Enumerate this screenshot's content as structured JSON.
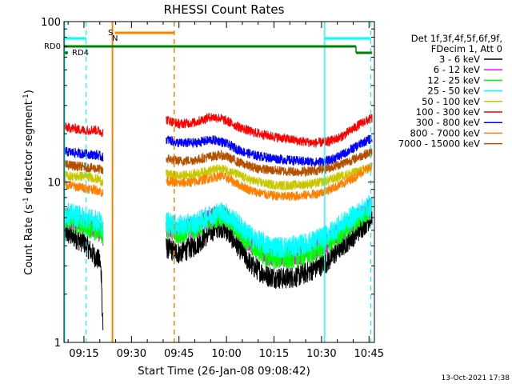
{
  "chart_data": {
    "type": "line",
    "title": "RHESSI Count Rates",
    "xlabel": "Start Time (26-Jan-08 09:08:42)",
    "ylabel_main": "Count Rate (s",
    "ylabel_sup1": "-1",
    "ylabel_mid": " detector segment",
    "ylabel_sup2": "-1",
    "ylabel_end": ")",
    "yscale": "log",
    "ylim": [
      1,
      100
    ],
    "xlim_minutes": [
      68.7,
      166.7
    ],
    "x_ticks": [
      {
        "label": "09:15",
        "minute": 75
      },
      {
        "label": "09:30",
        "minute": 90
      },
      {
        "label": "09:45",
        "minute": 105
      },
      {
        "label": "10:00",
        "minute": 120
      },
      {
        "label": "10:15",
        "minute": 135
      },
      {
        "label": "10:30",
        "minute": 150
      },
      {
        "label": "10:45",
        "minute": 165
      }
    ],
    "y_ticks": [
      {
        "label": "1",
        "value": 1
      },
      {
        "label": "10",
        "value": 10
      },
      {
        "label": "100",
        "value": 100
      }
    ],
    "legend": {
      "header": [
        "Det 1f,3f,4f,5f,6f,9f,",
        "FDecim 1, Att 0"
      ],
      "placement": "right"
    },
    "series": [
      {
        "name": "3 - 6 keV",
        "color": "#000000",
        "points": [
          [
            69,
            4.8
          ],
          [
            72,
            4.5
          ],
          [
            75,
            4.2
          ],
          [
            78,
            3.5
          ],
          [
            80,
            3.2
          ],
          [
            81,
            2.1
          ],
          [
            101,
            3.9
          ],
          [
            105,
            3.6
          ],
          [
            110,
            4.0
          ],
          [
            115,
            4.9
          ],
          [
            118,
            5.3
          ],
          [
            120,
            5.0
          ],
          [
            124,
            3.9
          ],
          [
            128,
            3.0
          ],
          [
            133,
            2.6
          ],
          [
            138,
            2.5
          ],
          [
            143,
            2.6
          ],
          [
            148,
            2.9
          ],
          [
            152,
            3.2
          ],
          [
            156,
            3.9
          ],
          [
            160,
            4.6
          ],
          [
            163,
            5.3
          ],
          [
            166,
            6.1
          ]
        ]
      },
      {
        "name": "6 - 12 keV",
        "color": "#ff00ff",
        "points": [
          [
            69,
            6.0
          ],
          [
            72,
            5.7
          ],
          [
            75,
            5.5
          ],
          [
            78,
            5.2
          ],
          [
            80,
            5.0
          ],
          [
            81,
            4.7
          ],
          [
            101,
            5.2
          ],
          [
            105,
            4.9
          ],
          [
            110,
            5.2
          ],
          [
            115,
            5.9
          ],
          [
            118,
            6.3
          ],
          [
            120,
            6.0
          ],
          [
            124,
            5.0
          ],
          [
            128,
            4.1
          ],
          [
            133,
            3.5
          ],
          [
            138,
            3.4
          ],
          [
            143,
            3.5
          ],
          [
            148,
            3.8
          ],
          [
            152,
            4.2
          ],
          [
            156,
            4.9
          ],
          [
            160,
            5.6
          ],
          [
            163,
            6.3
          ],
          [
            166,
            7.0
          ]
        ]
      },
      {
        "name": "12 - 25 keV",
        "color": "#00ff00",
        "points": [
          [
            69,
            5.9
          ],
          [
            72,
            5.6
          ],
          [
            75,
            5.4
          ],
          [
            78,
            5.1
          ],
          [
            80,
            4.9
          ],
          [
            81,
            4.6
          ],
          [
            101,
            5.1
          ],
          [
            105,
            4.8
          ],
          [
            110,
            5.1
          ],
          [
            115,
            5.8
          ],
          [
            118,
            6.2
          ],
          [
            120,
            5.9
          ],
          [
            124,
            4.9
          ],
          [
            128,
            4.0
          ],
          [
            133,
            3.4
          ],
          [
            138,
            3.3
          ],
          [
            143,
            3.4
          ],
          [
            148,
            3.7
          ],
          [
            152,
            4.1
          ],
          [
            156,
            4.8
          ],
          [
            160,
            5.5
          ],
          [
            163,
            6.2
          ],
          [
            166,
            6.9
          ]
        ]
      },
      {
        "name": "25 - 50 keV",
        "color": "#00ffff",
        "points": [
          [
            69,
            6.4
          ],
          [
            72,
            6.2
          ],
          [
            75,
            6.0
          ],
          [
            78,
            5.8
          ],
          [
            80,
            5.6
          ],
          [
            81,
            5.3
          ],
          [
            101,
            5.6
          ],
          [
            105,
            5.3
          ],
          [
            110,
            5.5
          ],
          [
            115,
            6.2
          ],
          [
            118,
            6.5
          ],
          [
            120,
            6.3
          ],
          [
            124,
            5.4
          ],
          [
            128,
            4.5
          ],
          [
            133,
            4.0
          ],
          [
            138,
            3.9
          ],
          [
            143,
            4.0
          ],
          [
            148,
            4.3
          ],
          [
            152,
            4.7
          ],
          [
            156,
            5.4
          ],
          [
            160,
            6.1
          ],
          [
            163,
            6.7
          ],
          [
            166,
            7.3
          ]
        ]
      },
      {
        "name": "50 - 100 keV",
        "color": "#c8c800",
        "points": [
          [
            69,
            11.0
          ],
          [
            72,
            10.8
          ],
          [
            75,
            10.9
          ],
          [
            78,
            10.6
          ],
          [
            80,
            10.3
          ],
          [
            81,
            9.9
          ],
          [
            101,
            11.2
          ],
          [
            105,
            10.9
          ],
          [
            110,
            11.2
          ],
          [
            115,
            11.8
          ],
          [
            118,
            12.1
          ],
          [
            120,
            11.9
          ],
          [
            124,
            11.0
          ],
          [
            128,
            10.2
          ],
          [
            133,
            9.7
          ],
          [
            138,
            9.5
          ],
          [
            143,
            9.6
          ],
          [
            148,
            9.8
          ],
          [
            152,
            10.2
          ],
          [
            156,
            10.9
          ],
          [
            160,
            11.4
          ],
          [
            163,
            11.9
          ],
          [
            166,
            12.4
          ]
        ]
      },
      {
        "name": "100 - 300 keV",
        "color": "#ff0000",
        "points": [
          [
            69,
            22.0
          ],
          [
            72,
            21.5
          ],
          [
            75,
            21.0
          ],
          [
            78,
            21.2
          ],
          [
            80,
            20.8
          ],
          [
            81,
            20.3
          ],
          [
            101,
            24.5
          ],
          [
            105,
            23.0
          ],
          [
            110,
            23.5
          ],
          [
            115,
            25.5
          ],
          [
            118,
            25.0
          ],
          [
            120,
            24.0
          ],
          [
            124,
            22.0
          ],
          [
            128,
            20.5
          ],
          [
            133,
            19.5
          ],
          [
            138,
            18.7
          ],
          [
            143,
            18.0
          ],
          [
            148,
            17.5
          ],
          [
            152,
            17.8
          ],
          [
            156,
            19.0
          ],
          [
            160,
            21.5
          ],
          [
            163,
            23.5
          ],
          [
            166,
            25.0
          ]
        ]
      },
      {
        "name": "300 - 800 keV",
        "color": "#0000ff",
        "points": [
          [
            69,
            15.5
          ],
          [
            72,
            15.2
          ],
          [
            75,
            15.0
          ],
          [
            78,
            14.8
          ],
          [
            80,
            14.6
          ],
          [
            81,
            14.2
          ],
          [
            101,
            18.5
          ],
          [
            105,
            17.5
          ],
          [
            110,
            17.5
          ],
          [
            115,
            18.3
          ],
          [
            118,
            18.0
          ],
          [
            120,
            17.3
          ],
          [
            124,
            15.8
          ],
          [
            128,
            14.8
          ],
          [
            133,
            14.2
          ],
          [
            138,
            13.8
          ],
          [
            143,
            13.5
          ],
          [
            148,
            13.3
          ],
          [
            152,
            13.5
          ],
          [
            156,
            14.6
          ],
          [
            160,
            16.2
          ],
          [
            163,
            17.6
          ],
          [
            166,
            18.8
          ]
        ]
      },
      {
        "name": "800 - 7000 keV",
        "color": "#ff8000",
        "points": [
          [
            69,
            9.7
          ],
          [
            72,
            9.4
          ],
          [
            75,
            9.2
          ],
          [
            78,
            9.0
          ],
          [
            80,
            8.8
          ],
          [
            81,
            8.5
          ],
          [
            101,
            10.2
          ],
          [
            105,
            9.8
          ],
          [
            110,
            10.0
          ],
          [
            115,
            10.6
          ],
          [
            118,
            10.9
          ],
          [
            120,
            10.6
          ],
          [
            124,
            9.6
          ],
          [
            128,
            8.8
          ],
          [
            133,
            8.3
          ],
          [
            138,
            8.1
          ],
          [
            143,
            8.2
          ],
          [
            148,
            8.4
          ],
          [
            152,
            8.9
          ],
          [
            156,
            9.6
          ],
          [
            160,
            10.6
          ],
          [
            163,
            11.6
          ],
          [
            166,
            12.6
          ]
        ]
      },
      {
        "name": "7000 - 15000 keV",
        "color": "#b45000",
        "points": [
          [
            69,
            12.8
          ],
          [
            72,
            12.6
          ],
          [
            75,
            12.4
          ],
          [
            78,
            12.2
          ],
          [
            80,
            12.0
          ],
          [
            81,
            11.6
          ],
          [
            101,
            14.0
          ],
          [
            105,
            13.5
          ],
          [
            110,
            13.7
          ],
          [
            115,
            14.4
          ],
          [
            118,
            14.7
          ],
          [
            120,
            14.4
          ],
          [
            124,
            13.2
          ],
          [
            128,
            12.4
          ],
          [
            133,
            11.9
          ],
          [
            138,
            11.7
          ],
          [
            143,
            11.6
          ],
          [
            148,
            11.8
          ],
          [
            152,
            12.2
          ],
          [
            156,
            12.9
          ],
          [
            160,
            13.8
          ],
          [
            163,
            14.7
          ],
          [
            166,
            15.4
          ]
        ]
      }
    ],
    "annotations": {
      "rd0_label": "RD0",
      "rd4_label": "RD4",
      "s_label": "S",
      "n_label": "N"
    },
    "cyan_lines": {
      "color": "#00ffff",
      "solid_minutes": [
        68.9,
        151.0
      ],
      "dashed_minutes": [
        75.7,
        165.6
      ]
    },
    "orange_lines": {
      "color": "#ff8000",
      "solid_minute": 84.0,
      "dashed_minute": 103.5
    },
    "green_color": "#008000",
    "timestamp": "13-Oct-2021 17:38"
  }
}
